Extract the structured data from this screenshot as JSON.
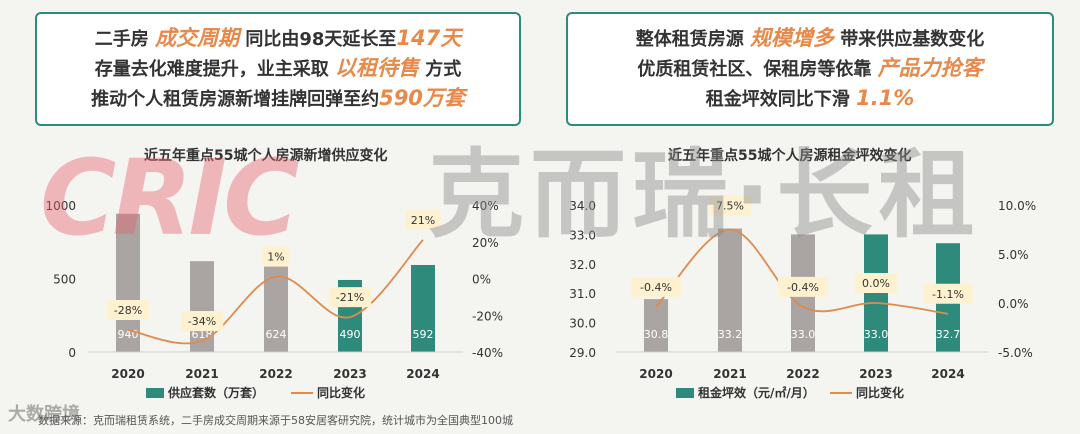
{
  "card_left": {
    "line1": {
      "a": "二手房",
      "b": "成交周期",
      "c": "同比由98天延长至",
      "d": "147天"
    },
    "line2": {
      "a": "存量去化难度提升，业主采取",
      "b": "以租待售",
      "c": "方式"
    },
    "line3": {
      "a": "推动个人租赁房源新增挂牌回弹至约",
      "b": "590万套"
    }
  },
  "card_right": {
    "line1": {
      "a": "整体租赁房源",
      "b": "规模增多",
      "c": "带来供应基数变化"
    },
    "line2": {
      "a": "优质租赁社区、保租房等依靠",
      "b": "产品力抢客"
    },
    "line3": {
      "a": "租金坪效同比下滑",
      "b": "1.1%"
    }
  },
  "watermark": {
    "en": "CRIC",
    "cn": "克而瑞·长租",
    "logo": "大数跨境"
  },
  "source": "数据来源：克而瑞租赁系统，二手房成交周期来源于58安居客研究院，统计城市为全国典型100城",
  "chart_data": [
    {
      "type": "bar",
      "title": "近五年重点55城个人房源新增供应变化",
      "categories": [
        "2020",
        "2021",
        "2022",
        "2023",
        "2024"
      ],
      "series": [
        {
          "name": "供应套数（万套）",
          "values": [
            940,
            618,
            624,
            490,
            592
          ],
          "axis": "left",
          "labels": [
            "940",
            "618",
            "624",
            "490",
            "592"
          ]
        },
        {
          "name": "同比变化",
          "type": "line",
          "values": [
            -28,
            -34,
            1,
            -21,
            21
          ],
          "axis": "right",
          "labels": [
            "-28%",
            "-34%",
            "1%",
            "-21%",
            "21%"
          ]
        }
      ],
      "ylim": [
        0,
        1000
      ],
      "yticks": [
        "0",
        "500",
        "1000"
      ],
      "y2lim": [
        -40,
        40
      ],
      "y2ticks": [
        "-40%",
        "-20%",
        "0%",
        "20%",
        "40%"
      ],
      "bar_colors": [
        "#aaa5a2",
        "#aaa5a2",
        "#aaa5a2",
        "#2e8b7b",
        "#2e8b7b"
      ],
      "line_color": "#e08a4b",
      "legend_position": "bottom"
    },
    {
      "type": "bar",
      "title": "近五年重点55城个人房源租金坪效变化",
      "categories": [
        "2020",
        "2021",
        "2022",
        "2023",
        "2024"
      ],
      "series": [
        {
          "name": "租金坪效（元/㎡/月）",
          "values": [
            30.8,
            33.2,
            33.0,
            33.0,
            32.7
          ],
          "axis": "left",
          "labels": [
            "30.8",
            "33.2",
            "33.0",
            "33.0",
            "32.7"
          ]
        },
        {
          "name": "同比变化",
          "type": "line",
          "values": [
            -0.4,
            7.5,
            -0.4,
            0.0,
            -1.1
          ],
          "axis": "right",
          "labels": [
            "-0.4%",
            "7.5%",
            "-0.4%",
            "0.0%",
            "-1.1%"
          ]
        }
      ],
      "ylim": [
        29.0,
        34.0
      ],
      "yticks": [
        "29.0",
        "30.0",
        "31.0",
        "32.0",
        "33.0",
        "34.0"
      ],
      "y2lim": [
        -5,
        10
      ],
      "y2ticks": [
        "-5.0%",
        "0.0%",
        "5.0%",
        "10.0%"
      ],
      "bar_colors": [
        "#aaa5a2",
        "#aaa5a2",
        "#aaa5a2",
        "#2e8b7b",
        "#2e8b7b"
      ],
      "line_color": "#e08a4b",
      "legend_position": "bottom"
    }
  ]
}
